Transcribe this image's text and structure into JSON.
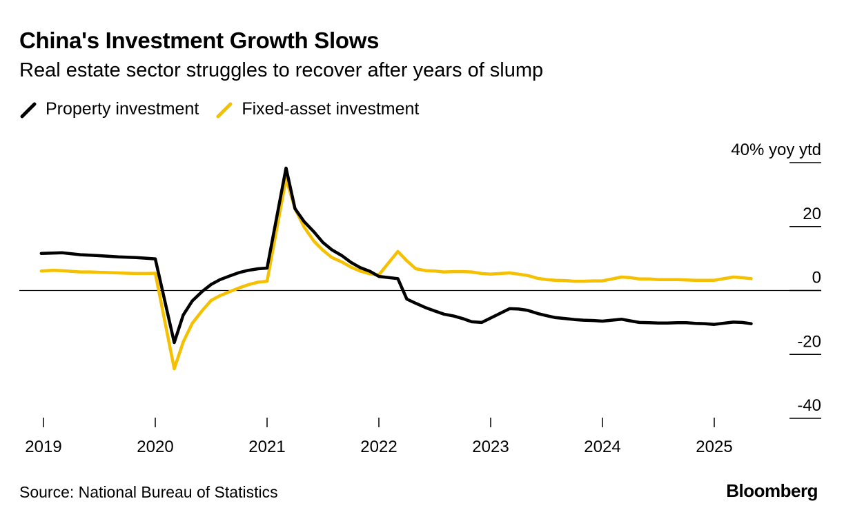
{
  "chart_data": {
    "type": "line",
    "title": "China's Investment Growth Slows",
    "subtitle": "Real estate sector struggles to recover after years of slump",
    "y_unit_label": "40% yoy ytd",
    "ylim": [
      -40,
      40
    ],
    "y_ticks": [
      {
        "value": 40,
        "label": "40% yoy ytd"
      },
      {
        "value": 20,
        "label": "20"
      },
      {
        "value": 0,
        "label": "0"
      },
      {
        "value": -20,
        "label": "-20"
      },
      {
        "value": -40,
        "label": "-40"
      }
    ],
    "xlim": [
      2018.92,
      2025.55
    ],
    "x_ticks": [
      {
        "value": 2019,
        "label": "2019"
      },
      {
        "value": 2020,
        "label": "2020"
      },
      {
        "value": 2021,
        "label": "2021"
      },
      {
        "value": 2022,
        "label": "2022"
      },
      {
        "value": 2023,
        "label": "2023"
      },
      {
        "value": 2024,
        "label": "2024"
      },
      {
        "value": 2025,
        "label": "2025"
      }
    ],
    "grid": false,
    "zero_line": true,
    "legend_position": "top-left",
    "series": [
      {
        "name": "Property investment",
        "color": "#000000",
        "points": [
          [
            2018.98,
            11.6
          ],
          [
            2019.17,
            11.8
          ],
          [
            2019.33,
            11.2
          ],
          [
            2019.5,
            10.9
          ],
          [
            2019.67,
            10.5
          ],
          [
            2019.83,
            10.3
          ],
          [
            2020.0,
            9.9
          ],
          [
            2020.17,
            -16.3
          ],
          [
            2020.25,
            -7.7
          ],
          [
            2020.33,
            -3.3
          ],
          [
            2020.42,
            -0.3
          ],
          [
            2020.5,
            1.9
          ],
          [
            2020.58,
            3.4
          ],
          [
            2020.67,
            4.6
          ],
          [
            2020.75,
            5.6
          ],
          [
            2020.83,
            6.3
          ],
          [
            2020.92,
            6.8
          ],
          [
            2021.0,
            7.0
          ],
          [
            2021.17,
            38.3
          ],
          [
            2021.25,
            25.6
          ],
          [
            2021.33,
            21.6
          ],
          [
            2021.42,
            18.3
          ],
          [
            2021.5,
            15.0
          ],
          [
            2021.58,
            12.7
          ],
          [
            2021.67,
            10.9
          ],
          [
            2021.75,
            8.8
          ],
          [
            2021.83,
            7.2
          ],
          [
            2021.92,
            6.0
          ],
          [
            2022.0,
            4.4
          ],
          [
            2022.17,
            3.7
          ],
          [
            2022.25,
            -2.7
          ],
          [
            2022.33,
            -4.0
          ],
          [
            2022.42,
            -5.4
          ],
          [
            2022.5,
            -6.4
          ],
          [
            2022.58,
            -7.4
          ],
          [
            2022.67,
            -8.0
          ],
          [
            2022.75,
            -8.8
          ],
          [
            2022.83,
            -9.8
          ],
          [
            2022.92,
            -10.0
          ],
          [
            2023.17,
            -5.7
          ],
          [
            2023.25,
            -5.8
          ],
          [
            2023.33,
            -6.2
          ],
          [
            2023.42,
            -7.2
          ],
          [
            2023.5,
            -7.9
          ],
          [
            2023.58,
            -8.5
          ],
          [
            2023.67,
            -8.8
          ],
          [
            2023.75,
            -9.1
          ],
          [
            2023.83,
            -9.3
          ],
          [
            2023.92,
            -9.4
          ],
          [
            2024.0,
            -9.6
          ],
          [
            2024.17,
            -9.0
          ],
          [
            2024.25,
            -9.5
          ],
          [
            2024.33,
            -10.0
          ],
          [
            2024.42,
            -10.1
          ],
          [
            2024.5,
            -10.2
          ],
          [
            2024.58,
            -10.2
          ],
          [
            2024.67,
            -10.1
          ],
          [
            2024.75,
            -10.1
          ],
          [
            2024.83,
            -10.3
          ],
          [
            2024.92,
            -10.4
          ],
          [
            2025.0,
            -10.6
          ],
          [
            2025.17,
            -9.9
          ],
          [
            2025.25,
            -10.0
          ],
          [
            2025.33,
            -10.4
          ]
        ]
      },
      {
        "name": "Fixed-asset investment",
        "color": "#f5c000",
        "points": [
          [
            2018.98,
            6.1
          ],
          [
            2019.08,
            6.3
          ],
          [
            2019.17,
            6.2
          ],
          [
            2019.25,
            6.0
          ],
          [
            2019.33,
            5.8
          ],
          [
            2019.42,
            5.8
          ],
          [
            2019.5,
            5.7
          ],
          [
            2019.58,
            5.6
          ],
          [
            2019.67,
            5.5
          ],
          [
            2019.75,
            5.4
          ],
          [
            2019.83,
            5.3
          ],
          [
            2019.92,
            5.3
          ],
          [
            2020.0,
            5.4
          ],
          [
            2020.17,
            -24.5
          ],
          [
            2020.25,
            -16.1
          ],
          [
            2020.33,
            -10.3
          ],
          [
            2020.42,
            -6.3
          ],
          [
            2020.5,
            -3.1
          ],
          [
            2020.58,
            -1.6
          ],
          [
            2020.67,
            -0.3
          ],
          [
            2020.75,
            0.8
          ],
          [
            2020.83,
            1.8
          ],
          [
            2020.92,
            2.6
          ],
          [
            2021.0,
            2.9
          ],
          [
            2021.17,
            35.0
          ],
          [
            2021.25,
            25.6
          ],
          [
            2021.33,
            19.9
          ],
          [
            2021.42,
            15.4
          ],
          [
            2021.5,
            12.6
          ],
          [
            2021.58,
            10.3
          ],
          [
            2021.67,
            8.9
          ],
          [
            2021.75,
            7.3
          ],
          [
            2021.83,
            6.1
          ],
          [
            2021.92,
            5.2
          ],
          [
            2022.0,
            4.9
          ],
          [
            2022.17,
            12.2
          ],
          [
            2022.25,
            9.3
          ],
          [
            2022.33,
            6.8
          ],
          [
            2022.42,
            6.2
          ],
          [
            2022.5,
            6.1
          ],
          [
            2022.58,
            5.8
          ],
          [
            2022.67,
            5.9
          ],
          [
            2022.75,
            5.9
          ],
          [
            2022.83,
            5.8
          ],
          [
            2022.92,
            5.3
          ],
          [
            2023.0,
            5.1
          ],
          [
            2023.17,
            5.5
          ],
          [
            2023.25,
            5.1
          ],
          [
            2023.33,
            4.7
          ],
          [
            2023.42,
            3.8
          ],
          [
            2023.5,
            3.4
          ],
          [
            2023.58,
            3.2
          ],
          [
            2023.67,
            3.1
          ],
          [
            2023.75,
            2.9
          ],
          [
            2023.83,
            2.9
          ],
          [
            2023.92,
            3.0
          ],
          [
            2024.0,
            3.0
          ],
          [
            2024.17,
            4.2
          ],
          [
            2024.25,
            4.0
          ],
          [
            2024.33,
            3.6
          ],
          [
            2024.42,
            3.6
          ],
          [
            2024.5,
            3.4
          ],
          [
            2024.58,
            3.4
          ],
          [
            2024.67,
            3.4
          ],
          [
            2024.75,
            3.3
          ],
          [
            2024.83,
            3.2
          ],
          [
            2024.92,
            3.2
          ],
          [
            2025.0,
            3.2
          ],
          [
            2025.17,
            4.2
          ],
          [
            2025.25,
            4.0
          ],
          [
            2025.33,
            3.7
          ]
        ]
      }
    ],
    "source": "Source: National Bureau of Statistics",
    "brand": "Bloomberg"
  }
}
